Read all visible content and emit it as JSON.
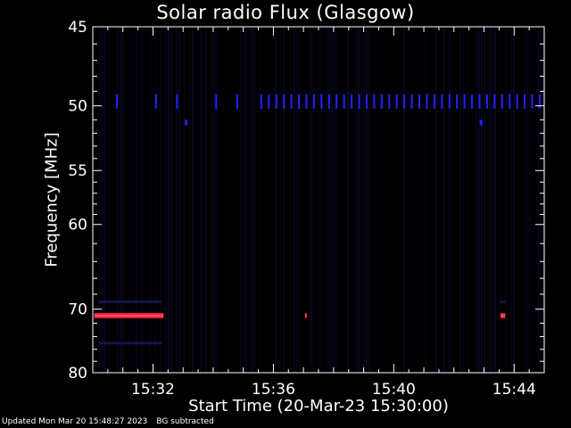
{
  "chart_data": {
    "type": "heatmap",
    "title": "Solar radio Flux (Glasgow)",
    "xlabel": "Start Time (20-Mar-23 15:30:00)",
    "ylabel": "Frequency [MHz]",
    "xlim_minutes_after_1530": [
      0,
      15
    ],
    "ylim_mhz": [
      45,
      80
    ],
    "y_scale": "reciprocal",
    "x_ticks": [
      {
        "label": "15:32",
        "minutes": 2
      },
      {
        "label": "15:36",
        "minutes": 6
      },
      {
        "label": "15:40",
        "minutes": 10
      },
      {
        "label": "15:44",
        "minutes": 14
      }
    ],
    "y_ticks": [
      {
        "label": "45",
        "mhz": 45
      },
      {
        "label": "50",
        "mhz": 50
      },
      {
        "label": "55",
        "mhz": 55
      },
      {
        "label": "60",
        "mhz": 60
      },
      {
        "label": "70",
        "mhz": 70
      },
      {
        "label": "80",
        "mhz": 80
      }
    ],
    "y_minor_ticks_mhz": [
      46,
      47,
      48,
      49,
      51,
      52,
      53,
      54,
      56,
      57,
      58,
      59,
      62,
      64,
      66,
      68,
      72,
      74,
      76,
      78
    ],
    "colors": {
      "background": "#000000",
      "noise": "#0a0a2a",
      "band": "#12124a",
      "blue": "#2222ff",
      "red": "#ff1a3a",
      "axes": "#ffffff"
    },
    "blue_marks_50mhz_minutes": [
      0.8,
      2.1,
      2.8,
      4.1,
      4.8,
      5.6,
      5.85,
      6.1,
      6.35,
      6.6,
      6.85,
      7.1,
      7.35,
      7.6,
      7.85,
      8.1,
      8.35,
      8.6,
      8.85,
      9.1,
      9.35,
      9.6,
      9.85,
      10.1,
      10.35,
      10.6,
      10.85,
      11.1,
      11.35,
      11.6,
      11.85,
      12.1,
      12.35,
      12.6,
      12.85,
      13.1,
      13.35,
      13.6,
      13.85,
      14.1,
      14.35,
      14.6,
      14.85
    ],
    "blue_dots": [
      {
        "minutes": 3.1,
        "mhz": 51.2
      },
      {
        "minutes": 12.9,
        "mhz": 51.2
      }
    ],
    "red_segments_71mhz": [
      {
        "start": 0.05,
        "end": 2.35
      },
      {
        "start": 7.05,
        "end": 7.1
      },
      {
        "start": 13.55,
        "end": 13.7
      }
    ],
    "dim_bands": [
      {
        "start": 0.2,
        "end": 2.3,
        "mhz": 69
      },
      {
        "start": 0.2,
        "end": 2.3,
        "mhz": 75
      },
      {
        "start": 13.5,
        "end": 13.7,
        "mhz": 69
      }
    ]
  },
  "footer": {
    "updated": "Updated Mon Mar 20 15:48:27 2023",
    "note": "BG subtracted"
  }
}
